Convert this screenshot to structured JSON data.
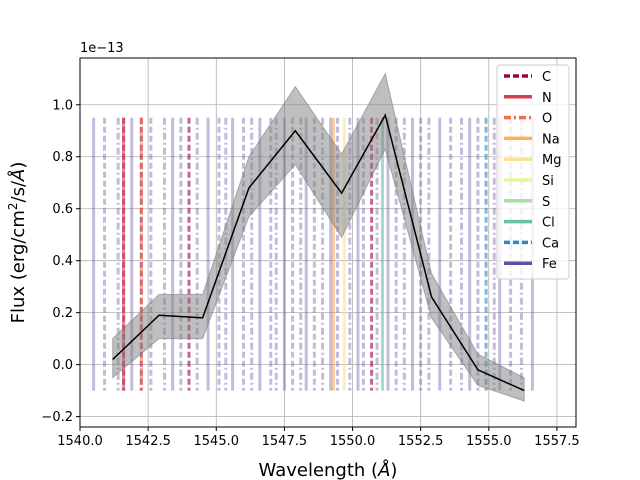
{
  "chart_data": {
    "type": "line",
    "title": "",
    "xlabel_prefix": "Wavelength (",
    "xlabel_symbol": "Å",
    "xlabel_suffix": ")",
    "ylabel_prefix": "Flux (erg/cm",
    "ylabel_sup": "2",
    "ylabel_middle": "/s/",
    "ylabel_symbol": "Å",
    "ylabel_suffix": ")",
    "y_offset_text": "1e−13",
    "xlim": [
      1540.0,
      1558.2
    ],
    "ylim": [
      -0.24,
      1.18
    ],
    "xticks": [
      1540.0,
      1542.5,
      1545.0,
      1547.5,
      1550.0,
      1552.5,
      1555.0,
      1557.5
    ],
    "xtick_labels": [
      "1540.0",
      "1542.5",
      "1545.0",
      "1547.5",
      "1550.0",
      "1552.5",
      "1555.0",
      "1557.5"
    ],
    "yticks": [
      -0.2,
      0.0,
      0.2,
      0.4,
      0.6,
      0.8,
      1.0
    ],
    "ytick_labels": [
      "−0.2",
      "0.0",
      "0.2",
      "0.4",
      "0.6",
      "0.8",
      "1.0"
    ],
    "grid": true,
    "legend_position": "top-right",
    "flux_series": {
      "color": "#000000",
      "band_color": "#808080",
      "x": [
        1541.2,
        1542.9,
        1544.5,
        1546.2,
        1547.9,
        1549.6,
        1551.2,
        1552.9,
        1554.6,
        1556.3
      ],
      "y": [
        0.02,
        0.19,
        0.18,
        0.68,
        0.9,
        0.66,
        0.96,
        0.26,
        -0.02,
        -0.1
      ],
      "y_low": [
        -0.05,
        0.1,
        0.1,
        0.57,
        0.77,
        0.49,
        0.83,
        0.18,
        -0.08,
        -0.14
      ],
      "y_high": [
        0.1,
        0.27,
        0.27,
        0.8,
        1.07,
        0.81,
        1.12,
        0.35,
        0.04,
        -0.05
      ]
    },
    "line_ymin": -0.1,
    "line_ymax": 0.95,
    "element_series": [
      {
        "name": "C",
        "color": "#9e0142",
        "style": "dashed",
        "x": [
          1541.6,
          1542.25,
          1544.0,
          1550.7
        ]
      },
      {
        "name": "N",
        "color": "#d53e4f",
        "style": "solid",
        "x": [
          1541.6
        ]
      },
      {
        "name": "O",
        "color": "#f46d43",
        "style": "dashdot",
        "x": [
          1542.25
        ]
      },
      {
        "name": "Na",
        "color": "#fdae61",
        "style": "solid",
        "x": [
          1549.3
        ]
      },
      {
        "name": "Mg",
        "color": "#fee08b",
        "style": "solid",
        "x": [
          1549.7
        ]
      },
      {
        "name": "Si",
        "color": "#e6f598",
        "style": "solid",
        "x": []
      },
      {
        "name": "S",
        "color": "#abdda4",
        "style": "solid",
        "x": []
      },
      {
        "name": "Cl",
        "color": "#66c2a5",
        "style": "solid",
        "x": [
          1551.1
        ]
      },
      {
        "name": "Ca",
        "color": "#3288bd",
        "style": "dashed",
        "x": [
          1554.9
        ]
      },
      {
        "name": "Fe",
        "color": "#5e4fa2",
        "style": "mixed",
        "x": [
          1540.5,
          1540.9,
          1541.4,
          1541.9,
          1542.6,
          1543.1,
          1543.4,
          1543.7,
          1544.3,
          1544.7,
          1545.1,
          1545.35,
          1545.6,
          1546.0,
          1546.3,
          1546.6,
          1547.0,
          1547.2,
          1547.5,
          1547.8,
          1548.1,
          1548.3,
          1548.6,
          1548.9,
          1549.2,
          1549.45,
          1549.9,
          1550.2,
          1550.4,
          1550.9,
          1551.3,
          1551.6,
          1551.9,
          1552.2,
          1552.5,
          1552.8,
          1553.2,
          1553.6,
          1554.0,
          1554.3,
          1554.6,
          1555.2,
          1555.4,
          1555.8,
          1556.2,
          1556.6
        ]
      }
    ]
  }
}
